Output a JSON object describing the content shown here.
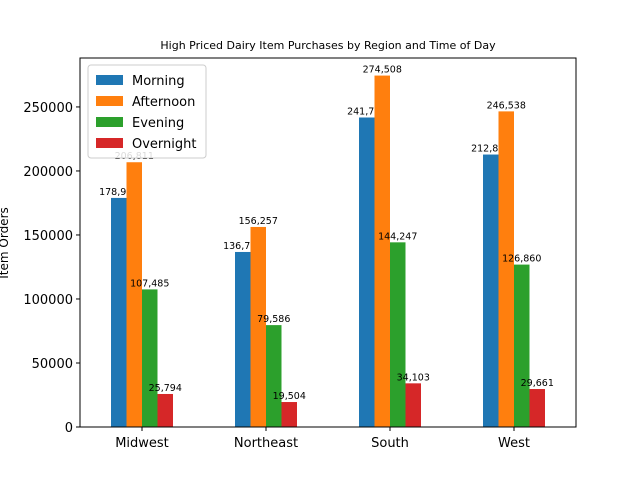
{
  "chart_data": {
    "type": "bar",
    "title": "High Priced Dairy Item Purchases by Region and Time of Day",
    "xlabel": "",
    "ylabel": "Item Orders",
    "categories": [
      "Midwest",
      "Northeast",
      "South",
      "West"
    ],
    "series": [
      {
        "name": "Morning",
        "color": "#1f77b4",
        "values": [
          178934,
          136717,
          241757,
          212828
        ],
        "labels": [
          "178,934",
          "136,717",
          "241,757",
          "212,828"
        ]
      },
      {
        "name": "Afternoon",
        "color": "#ff7f0e",
        "values": [
          206811,
          156257,
          274508,
          246538
        ],
        "labels": [
          "206,811",
          "156,257",
          "274,508",
          "246,538"
        ]
      },
      {
        "name": "Evening",
        "color": "#2ca02c",
        "values": [
          107485,
          79586,
          144247,
          126860
        ],
        "labels": [
          "107,485",
          "79,586",
          "144,247",
          "126,860"
        ]
      },
      {
        "name": "Overnight",
        "color": "#d62728",
        "values": [
          25794,
          19504,
          34103,
          29661
        ],
        "labels": [
          "25,794",
          "19,504",
          "34,103",
          "29,661"
        ]
      }
    ],
    "yticks": [
      0,
      50000,
      100000,
      150000,
      200000,
      250000
    ],
    "ylim": [
      0,
      288233
    ],
    "legend_position": "upper-left",
    "grid": false
  }
}
